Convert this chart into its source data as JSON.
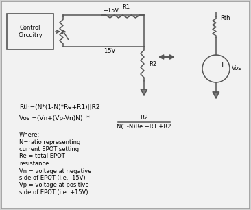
{
  "bg_color": "#d0d0d0",
  "inner_bg": "#f2f2f2",
  "line_color": "#555555",
  "text_color": "#000000",
  "eq1": "Rth=(N*(1-N)*Re+R1)||R2",
  "eq2_left": "Vos =(Vn+(Vp-Vn)N)  *",
  "eq2_num": "R2",
  "eq2_den": "N(1-N)Re +R1 +R2",
  "where_text": [
    "Where:",
    "N=ratio representing",
    "current EPOT setting",
    "Re = total EPOT",
    "resistance",
    "Vn = voltage at negative",
    "side of EPOT (i.e. -15V)",
    "Vp = voltage at positive",
    "side of EPOT (i.e. +15V)"
  ],
  "label_r1": "R1",
  "label_r2": "R2",
  "label_rth": "Rth",
  "label_vos": "Vos",
  "label_plus15": "+15V",
  "label_minus15": "-15V",
  "label_control": "Control\nCircuitry",
  "font_size": 6.0
}
